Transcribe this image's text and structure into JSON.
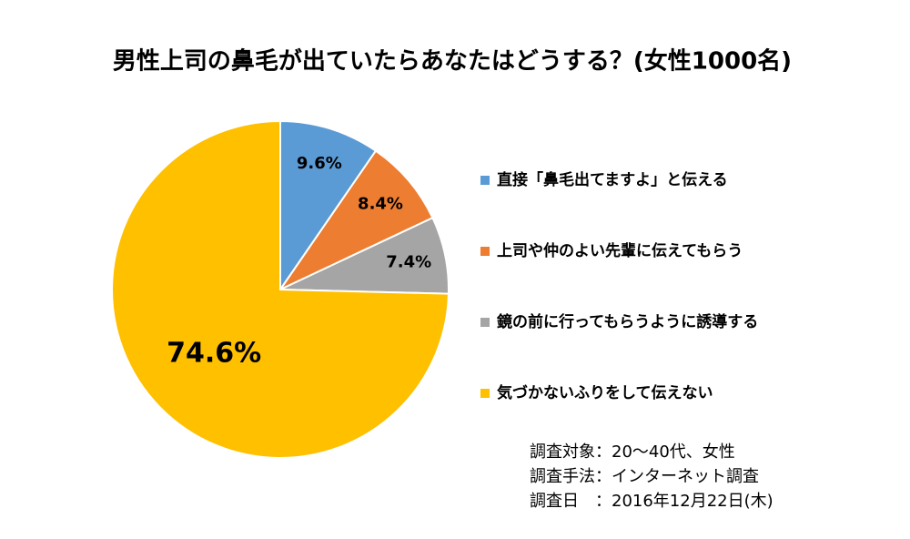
{
  "chart_data": {
    "type": "pie",
    "title": "男性上司の鼻毛が出ていたらあなたはどうする？(女性1000名)",
    "categories": [
      "直接「鼻毛出てますよ」と伝える",
      "上司や仲のよい先輩に伝えてもらう",
      "鏡の前に行ってもらうように誘導する",
      "気づかないふりをして伝えない"
    ],
    "values": [
      9.6,
      8.4,
      7.4,
      74.6
    ],
    "value_labels": [
      "9.6%",
      "8.4%",
      "7.4%",
      "74.6%"
    ],
    "colors": [
      "#5b9bd5",
      "#ed7d31",
      "#a5a5a5",
      "#ffc000"
    ],
    "legend": "right",
    "notes": [
      "調査対象：20～40代、女性",
      "調査手法：インターネット調査",
      "調査日　：2016年12月22日(木)"
    ]
  }
}
